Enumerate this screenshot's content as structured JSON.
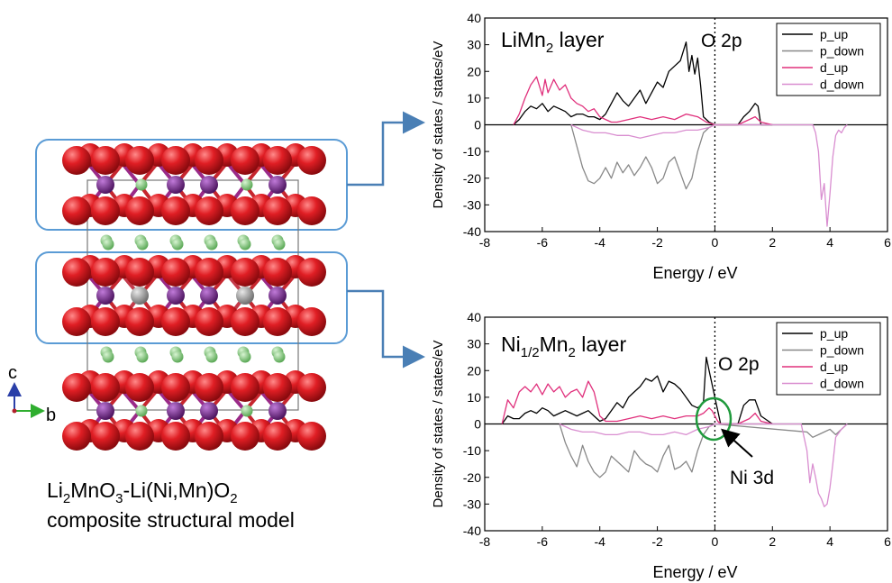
{
  "model": {
    "caption_line1": {
      "base": "Li",
      "s1": "2",
      "mid1": "MnO",
      "s2": "3",
      "mid2": "-Li(Ni,Mn)O",
      "s3": "2"
    },
    "caption_line2": "composite structural model",
    "axis_c": "c",
    "axis_b": "b",
    "colors": {
      "oxygen": "#d8141c",
      "manganese": "#7b2e8f",
      "nickel": "#a8a8a8",
      "lithium": "#8fd18b",
      "frame": "#5a9bd5"
    }
  },
  "chart_data": [
    {
      "type": "line",
      "title": {
        "base": "LiMn",
        "sub": "2",
        "rest": " layer"
      },
      "annotation": "O 2p",
      "xlabel": "Energy / eV",
      "ylabel": "Density of states / states/eV",
      "xlim": [
        -8,
        6
      ],
      "ylim": [
        -40,
        40
      ],
      "xticks": [
        -8,
        -6,
        -4,
        -2,
        0,
        2,
        4,
        6
      ],
      "yticks": [
        40,
        30,
        20,
        10,
        0,
        -10,
        -20,
        -30,
        -40
      ],
      "fermi_level": 0,
      "legend": "top-right",
      "series": [
        {
          "name": "p_up",
          "color": "#000000",
          "x": [
            -7.0,
            -6.8,
            -6.6,
            -6.4,
            -6.2,
            -6.0,
            -5.8,
            -5.6,
            -5.4,
            -5.2,
            -5.0,
            -4.8,
            -4.6,
            -4.4,
            -4.2,
            -4.0,
            -3.8,
            -3.6,
            -3.4,
            -3.2,
            -3.0,
            -2.8,
            -2.6,
            -2.4,
            -2.2,
            -2.0,
            -1.8,
            -1.6,
            -1.4,
            -1.2,
            -1.0,
            -0.9,
            -0.8,
            -0.7,
            -0.6,
            -0.5,
            -0.4,
            -0.2,
            0.0,
            0.2,
            0.8,
            1.0,
            1.2,
            1.4,
            1.5,
            1.6,
            2.0
          ],
          "y": [
            0,
            2,
            5,
            7,
            6,
            8,
            5,
            7,
            6,
            5,
            3,
            4,
            4,
            3,
            3,
            2,
            4,
            8,
            12,
            9,
            7,
            10,
            13,
            8,
            12,
            16,
            14,
            20,
            22,
            24,
            31,
            20,
            26,
            19,
            25,
            15,
            3,
            1,
            0,
            0,
            0,
            3,
            5,
            8,
            7,
            0,
            0
          ]
        },
        {
          "name": "p_down",
          "color": "#888888",
          "x": [
            -5.0,
            -4.8,
            -4.6,
            -4.4,
            -4.2,
            -4.0,
            -3.8,
            -3.6,
            -3.4,
            -3.2,
            -3.0,
            -2.8,
            -2.6,
            -2.4,
            -2.2,
            -2.0,
            -1.8,
            -1.6,
            -1.4,
            -1.2,
            -1.0,
            -0.8,
            -0.6,
            -0.4,
            -0.2,
            0.0
          ],
          "y": [
            0,
            -8,
            -16,
            -21,
            -22,
            -20,
            -16,
            -20,
            -14,
            -18,
            -15,
            -19,
            -16,
            -12,
            -16,
            -22,
            -20,
            -14,
            -12,
            -18,
            -24,
            -20,
            -10,
            -3,
            -1,
            0
          ]
        },
        {
          "name": "d_up",
          "color": "#e0307c",
          "x": [
            -7.0,
            -6.8,
            -6.6,
            -6.4,
            -6.2,
            -6.0,
            -5.9,
            -5.8,
            -5.6,
            -5.4,
            -5.2,
            -5.0,
            -4.8,
            -4.6,
            -4.4,
            -4.2,
            -4.0,
            -3.8,
            -3.6,
            -3.4,
            -3.0,
            -2.6,
            -2.2,
            -1.8,
            -1.4,
            -1.0,
            -0.6,
            -0.3,
            0.0,
            0.2,
            0.8,
            1.0,
            1.2,
            1.4,
            1.6,
            2.0
          ],
          "y": [
            0,
            4,
            10,
            15,
            18,
            11,
            17,
            12,
            17,
            13,
            15,
            10,
            8,
            7,
            5,
            6,
            3,
            2,
            1,
            1,
            2,
            3,
            2,
            3,
            2,
            4,
            3,
            1,
            0,
            0,
            0,
            1,
            2,
            3,
            1,
            0
          ]
        },
        {
          "name": "d_down",
          "color": "#d98ed0",
          "x": [
            -5.0,
            -4.6,
            -4.2,
            -3.8,
            -3.4,
            -3.0,
            -2.6,
            -2.2,
            -1.8,
            -1.4,
            -1.0,
            -0.6,
            -0.2,
            0.0,
            3.4,
            3.5,
            3.6,
            3.7,
            3.8,
            3.9,
            4.0,
            4.1,
            4.2,
            4.3,
            4.4,
            4.5,
            4.6
          ],
          "y": [
            0,
            -2,
            -3,
            -3,
            -4,
            -4,
            -5,
            -4,
            -3,
            -3,
            -2,
            -2,
            -1,
            0,
            0,
            -3,
            -10,
            -28,
            -22,
            -38,
            -26,
            -12,
            -4,
            -2,
            -3,
            -1,
            0
          ]
        }
      ]
    },
    {
      "type": "line",
      "title": {
        "base": "Ni",
        "sub": "1/2",
        "rest": "Mn",
        "sub2": "2",
        "rest2": " layer"
      },
      "annotation": "O 2p",
      "callout": "Ni 3d",
      "xlabel": "Energy / eV",
      "ylabel": "Density of states / states/eV",
      "xlim": [
        -8,
        6
      ],
      "ylim": [
        -40,
        40
      ],
      "xticks": [
        -8,
        -6,
        -4,
        -2,
        0,
        2,
        4,
        6
      ],
      "yticks": [
        40,
        30,
        20,
        10,
        0,
        -10,
        -20,
        -30,
        -40
      ],
      "fermi_level": 0,
      "legend": "top-right",
      "series": [
        {
          "name": "p_up",
          "color": "#000000",
          "x": [
            -7.4,
            -7.2,
            -7.0,
            -6.8,
            -6.6,
            -6.4,
            -6.2,
            -6.0,
            -5.8,
            -5.6,
            -5.4,
            -5.2,
            -5.0,
            -4.8,
            -4.6,
            -4.4,
            -4.2,
            -4.0,
            -3.8,
            -3.6,
            -3.4,
            -3.2,
            -3.0,
            -2.8,
            -2.6,
            -2.4,
            -2.2,
            -2.0,
            -1.8,
            -1.6,
            -1.4,
            -1.2,
            -1.0,
            -0.8,
            -0.6,
            -0.4,
            -0.3,
            -0.2,
            0.0,
            0.2,
            0.8,
            1.0,
            1.2,
            1.4,
            1.6,
            2.0
          ],
          "y": [
            0,
            3,
            2,
            2,
            4,
            5,
            4,
            6,
            5,
            3,
            4,
            5,
            4,
            3,
            4,
            5,
            3,
            1,
            2,
            5,
            8,
            6,
            10,
            12,
            14,
            17,
            16,
            18,
            12,
            16,
            15,
            13,
            10,
            7,
            6,
            8,
            25,
            20,
            10,
            0,
            0,
            7,
            9,
            9,
            3,
            0
          ]
        },
        {
          "name": "p_down",
          "color": "#888888",
          "x": [
            -5.4,
            -5.2,
            -5.0,
            -4.8,
            -4.6,
            -4.4,
            -4.2,
            -4.0,
            -3.8,
            -3.6,
            -3.4,
            -3.2,
            -3.0,
            -2.8,
            -2.6,
            -2.4,
            -2.2,
            -2.0,
            -1.8,
            -1.6,
            -1.4,
            -1.2,
            -1.0,
            -0.8,
            -0.6,
            -0.4,
            -0.2,
            0.0,
            3.2,
            3.4,
            3.6,
            3.8,
            4.0,
            4.2,
            4.4,
            4.6
          ],
          "y": [
            0,
            -7,
            -12,
            -16,
            -8,
            -14,
            -18,
            -20,
            -18,
            -12,
            -14,
            -16,
            -18,
            -10,
            -13,
            -15,
            -16,
            -18,
            -12,
            -8,
            -17,
            -16,
            -14,
            -18,
            -10,
            -4,
            -1,
            0,
            -3,
            -5,
            -4,
            -3,
            -2,
            -4,
            -2,
            0
          ]
        },
        {
          "name": "d_up",
          "color": "#e0307c",
          "x": [
            -7.4,
            -7.2,
            -7.0,
            -6.8,
            -6.6,
            -6.4,
            -6.2,
            -6.0,
            -5.8,
            -5.6,
            -5.4,
            -5.2,
            -5.0,
            -4.8,
            -4.6,
            -4.4,
            -4.2,
            -4.0,
            -3.8,
            -3.4,
            -3.0,
            -2.6,
            -2.2,
            -1.8,
            -1.4,
            -1.0,
            -0.6,
            -0.4,
            -0.2,
            -0.1,
            0.0,
            0.1,
            0.2,
            0.8,
            1.0,
            1.2,
            1.4,
            1.6,
            2.0
          ],
          "y": [
            0,
            9,
            6,
            12,
            14,
            12,
            15,
            11,
            15,
            12,
            14,
            10,
            12,
            13,
            10,
            16,
            12,
            3,
            1,
            1,
            2,
            3,
            2,
            3,
            2,
            3,
            3,
            4,
            6,
            5,
            3,
            1,
            0,
            0,
            1,
            2,
            4,
            1,
            0
          ]
        },
        {
          "name": "d_down",
          "color": "#d98ed0",
          "x": [
            -5.4,
            -5.0,
            -4.6,
            -4.2,
            -3.8,
            -3.4,
            -3.0,
            -2.6,
            -2.2,
            -1.8,
            -1.4,
            -1.0,
            -0.6,
            -0.2,
            0.0,
            3.0,
            3.2,
            3.3,
            3.4,
            3.5,
            3.6,
            3.7,
            3.8,
            3.9,
            4.0,
            4.1,
            4.2,
            4.4,
            4.6
          ],
          "y": [
            0,
            -2,
            -3,
            -3,
            -4,
            -4,
            -3,
            -3,
            -4,
            -4,
            -3,
            -4,
            -2,
            -1,
            0,
            0,
            -10,
            -22,
            -15,
            -20,
            -26,
            -28,
            -31,
            -30,
            -24,
            -15,
            -5,
            -2,
            0
          ]
        }
      ]
    }
  ]
}
